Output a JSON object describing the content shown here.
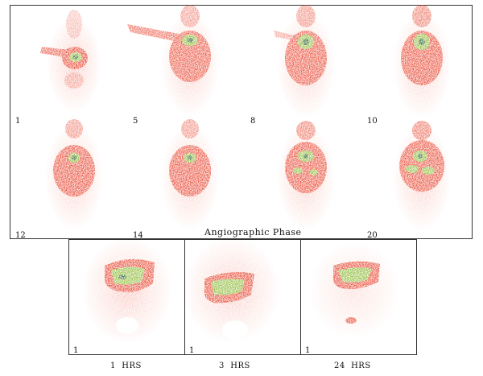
{
  "angiographic_phase": {
    "caption": "Angiographic Phase",
    "frames": [
      {
        "label": "1"
      },
      {
        "label": "5"
      },
      {
        "label": "8"
      },
      {
        "label": "10"
      },
      {
        "label": "12"
      },
      {
        "label": "14"
      },
      {
        "label": ""
      },
      {
        "label": "20"
      }
    ]
  },
  "delayed_phase": {
    "images": [
      {
        "corner_label": "1",
        "time_label": "1  HRS"
      },
      {
        "corner_label": "1",
        "time_label": "3  HRS"
      },
      {
        "corner_label": "1",
        "time_label": "24  HRS"
      }
    ]
  },
  "colors": {
    "tissue": "#e8402a",
    "hot": "#8ab832",
    "hottest": "#1e5a1e",
    "background_speck": "#f6a0a0",
    "frame_border": "#333333"
  }
}
